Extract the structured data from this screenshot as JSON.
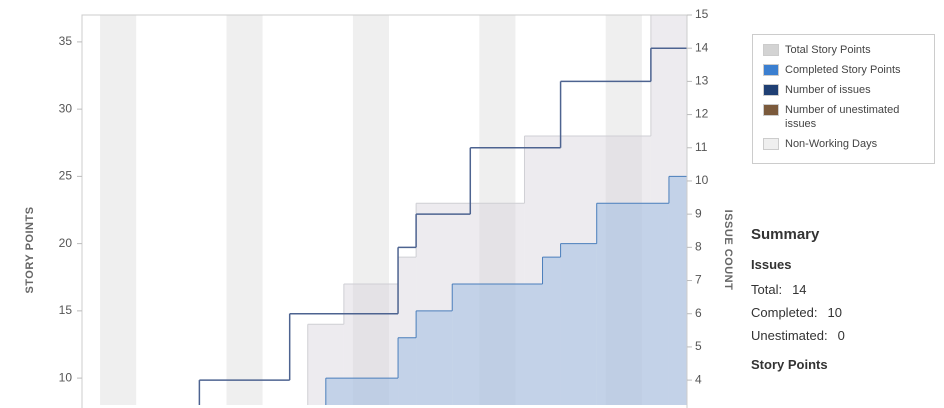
{
  "chart_data": {
    "type": "step",
    "y_label": "STORY POINTS",
    "y2_label": "ISSUE COUNT",
    "xlim": [
      -1,
      32.5
    ],
    "ylim": [
      8,
      37
    ],
    "yticks": [
      10,
      15,
      20,
      25,
      30,
      35
    ],
    "y2lim": [
      3.25,
      15
    ],
    "y2ticks": [
      4,
      5,
      6,
      7,
      8,
      9,
      10,
      11,
      12,
      13,
      14,
      15
    ],
    "non_working_days": {
      "name": "Non-Working Days",
      "color": "#efefef",
      "ranges": [
        [
          0,
          2
        ],
        [
          7,
          9
        ],
        [
          14,
          16
        ],
        [
          21,
          23
        ],
        [
          28,
          30
        ]
      ]
    },
    "series": [
      {
        "name": "Total Story Points",
        "color": "#d3d3d3",
        "kind": "area",
        "x": [
          11.5,
          13.5,
          16.5,
          17.5,
          23.5,
          30.5
        ],
        "values": [
          14,
          17,
          19,
          23,
          28,
          37
        ]
      },
      {
        "name": "Completed Story Points",
        "color": "#3b7fd0",
        "kind": "area",
        "x": [
          12.5,
          16.5,
          17.5,
          19.5,
          24.5,
          25.5,
          27.5,
          31.5
        ],
        "values": [
          10,
          13,
          15,
          17,
          19,
          20,
          23,
          25
        ]
      },
      {
        "name": "Number of issues",
        "color": "#1f3f73",
        "kind": "line",
        "axis": "y2",
        "x": [
          5.5,
          10.5,
          16.5,
          17.5,
          20.5,
          25.5,
          30.5
        ],
        "values": [
          4,
          6,
          8,
          9,
          11,
          13,
          14
        ]
      },
      {
        "name": "Number of unestimated issues",
        "color": "#7b5a3c",
        "kind": "line",
        "axis": "y2",
        "x": [],
        "values": []
      }
    ]
  },
  "summary": {
    "title": "Summary",
    "issues_heading": "Issues",
    "rows": [
      [
        "Total:",
        "14"
      ],
      [
        "Completed:",
        "10"
      ],
      [
        "Unestimated:",
        "0"
      ]
    ],
    "points_heading": "Story Points"
  }
}
